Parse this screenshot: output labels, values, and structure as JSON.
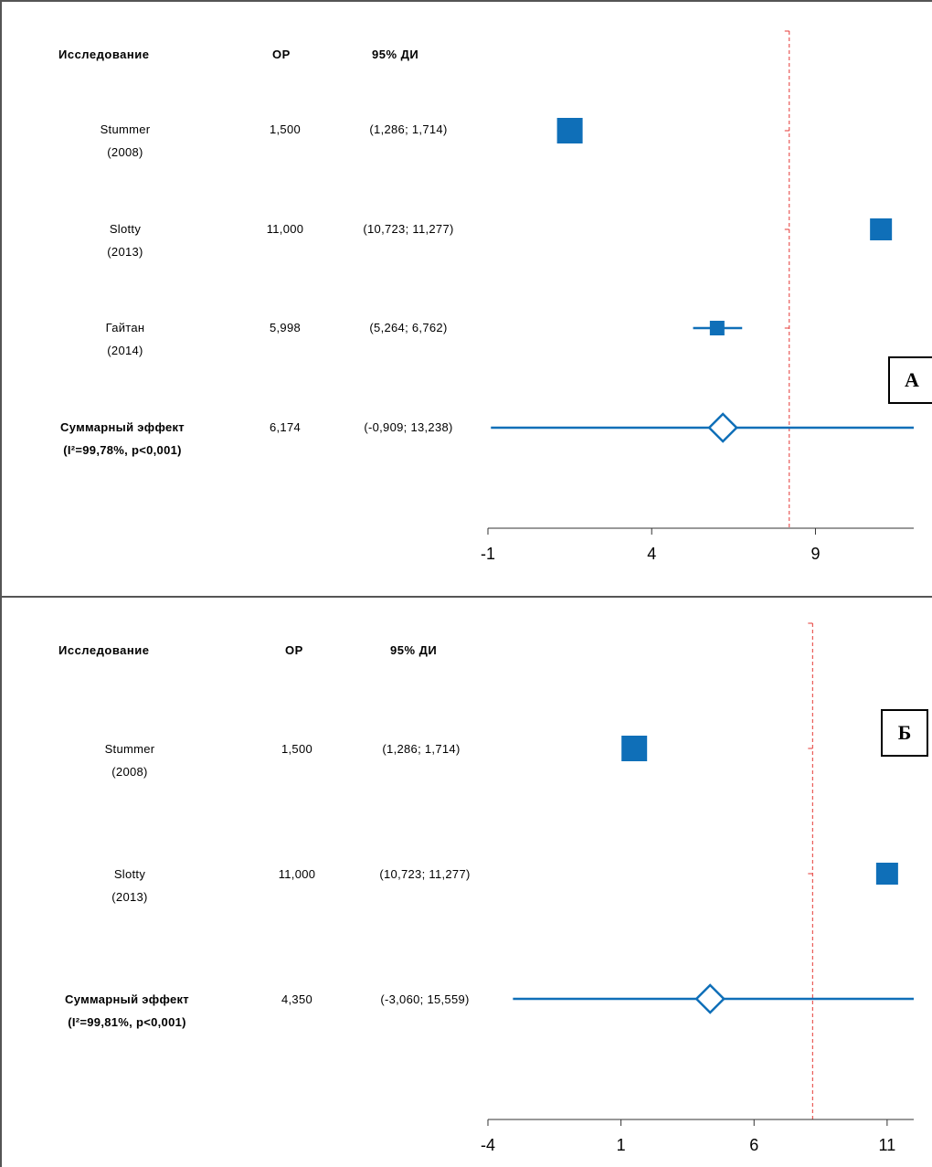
{
  "colors": {
    "marker": "#0f6fb8",
    "reference_line": "#e53935",
    "axis": "#333333"
  },
  "chart_data": [
    {
      "type": "forest",
      "panel_label": "А",
      "headers": {
        "study": "Исследование",
        "or": "ОР",
        "ci": "95% ДИ"
      },
      "studies": [
        {
          "name": "Stummer",
          "year": "(2008)",
          "or_text": "1,500",
          "ci_text": "(1,286; 1,714)",
          "or": 1.5,
          "ci": [
            1.286,
            1.714
          ],
          "weight": "large"
        },
        {
          "name": "Slotty",
          "year": "(2013)",
          "or_text": "11,000",
          "ci_text": "(10,723; 11,277)",
          "or": 11.0,
          "ci": [
            10.723,
            11.277
          ],
          "weight": "medium"
        },
        {
          "name": "Гайтан",
          "year": "(2014)",
          "or_text": "5,998",
          "ci_text": "(5,264; 6,762)",
          "or": 5.998,
          "ci": [
            5.264,
            6.762
          ],
          "weight": "small"
        }
      ],
      "summary": {
        "label": "Суммарный эффект",
        "stats": "(I²=99,78%, p<0,001)",
        "or_text": "6,174",
        "ci_text": "(-0,909; 13,238)",
        "or": 6.174,
        "ci": [
          -0.909,
          13.238
        ]
      },
      "xticks": [
        "-1",
        "4",
        "9"
      ],
      "xtick_values": [
        -1,
        4,
        9
      ],
      "xlim": [
        -1,
        12
      ],
      "reference_line": 8.2
    },
    {
      "type": "forest",
      "panel_label": "Б",
      "headers": {
        "study": "Исследование",
        "or": "ОР",
        "ci": "95% ДИ"
      },
      "studies": [
        {
          "name": "Stummer",
          "year": "(2008)",
          "or_text": "1,500",
          "ci_text": "(1,286; 1,714)",
          "or": 1.5,
          "ci": [
            1.286,
            1.714
          ],
          "weight": "large"
        },
        {
          "name": "Slotty",
          "year": "(2013)",
          "or_text": "11,000",
          "ci_text": "(10,723; 11,277)",
          "or": 11.0,
          "ci": [
            10.723,
            11.277
          ],
          "weight": "medium"
        }
      ],
      "summary": {
        "label": "Суммарный эффект",
        "stats": "(I²=99,81%, p<0,001)",
        "or_text": "4,350",
        "ci_text": "(-3,060; 15,559)",
        "or": 4.35,
        "ci": [
          -3.06,
          15.559
        ]
      },
      "xticks": [
        "-4",
        "1",
        "6",
        "11"
      ],
      "xtick_values": [
        -4,
        1,
        6,
        11
      ],
      "xlim": [
        -4,
        12
      ],
      "reference_line": 8.2
    }
  ]
}
